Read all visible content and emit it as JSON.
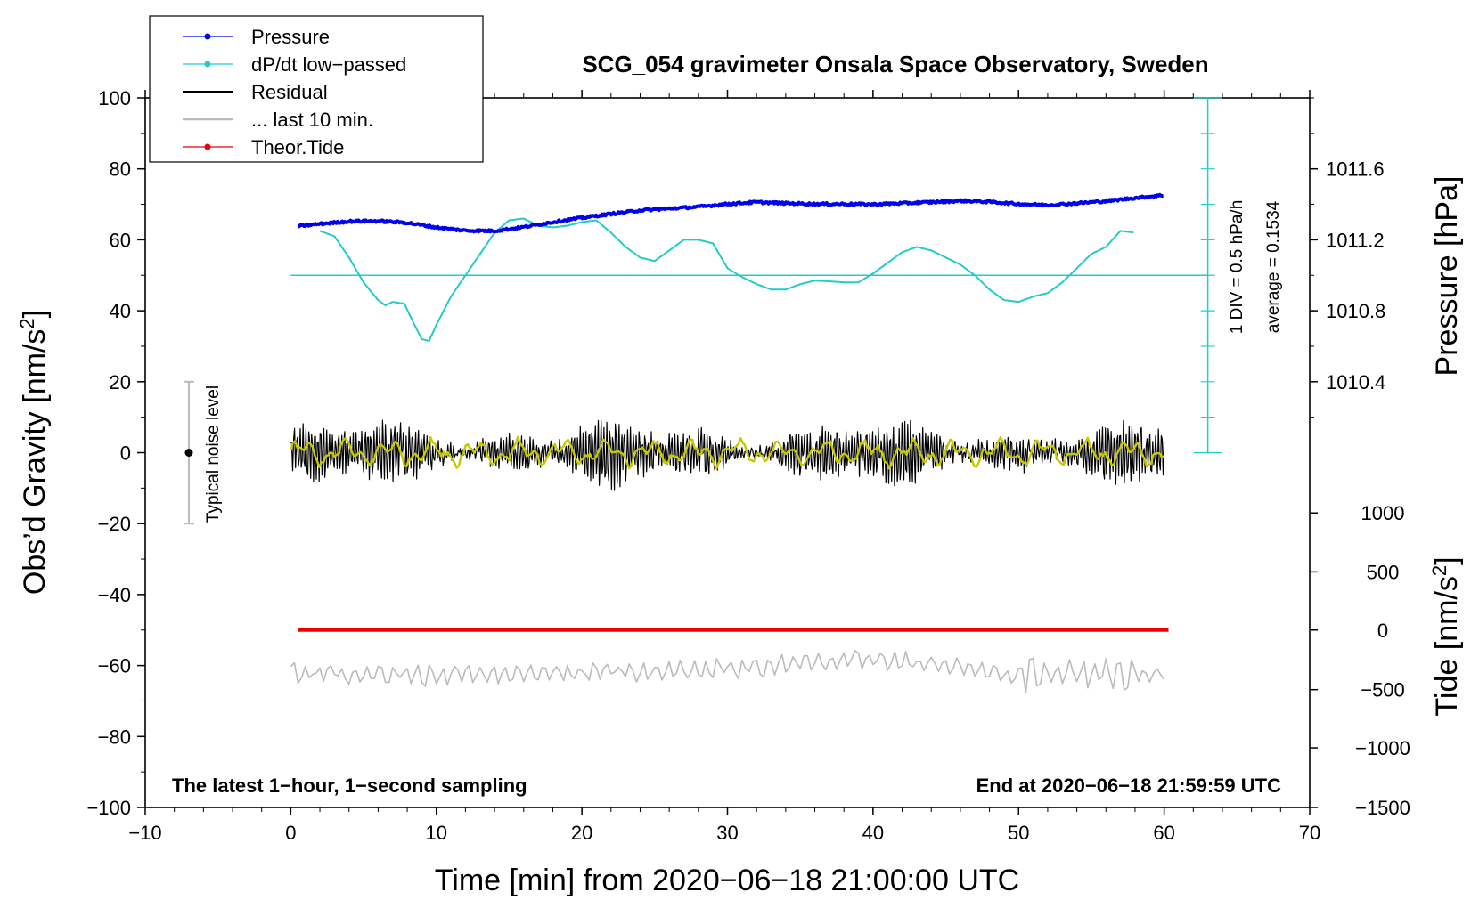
{
  "chart_data": {
    "type": "line",
    "title": "SCG_054 gravimeter Onsala Space Observatory, Sweden",
    "xlabel": "Time [min] from 2020−06−18 21:00:00 UTC",
    "ylabel_left": "Obs’d Gravity [nm/s",
    "ylabel_left_sup": "2",
    "ylabel_left_close": "]",
    "ylabel_pressure": "Pressure [hPa]",
    "ylabel_tide": "Tide [nm/s",
    "ylabel_tide_sup": "2",
    "ylabel_tide_close": "]",
    "xlim": [
      -10,
      70
    ],
    "ylim_left": [
      -100,
      100
    ],
    "x_ticks": [
      -10,
      0,
      10,
      20,
      30,
      40,
      50,
      60,
      70
    ],
    "x_tick_labels": [
      "−10",
      "0",
      "10",
      "20",
      "30",
      "40",
      "50",
      "60",
      "70"
    ],
    "y_ticks_left": [
      100,
      80,
      60,
      40,
      20,
      0,
      -20,
      -40,
      -60,
      -80,
      -100
    ],
    "y_tick_labels_left": [
      "100",
      "80",
      "60",
      "40",
      "20",
      "0",
      "−20",
      "−40",
      "−60",
      "−80",
      "−100"
    ],
    "pressure_axis": {
      "ticks_hpa": [
        1011.6,
        1011.2,
        1010.8,
        1010.4
      ],
      "tick_labels": [
        "1011.6",
        "1011.2",
        "1010.8",
        "1010.4"
      ],
      "tick_left_units": [
        80,
        60,
        40,
        20
      ]
    },
    "tide_axis": {
      "ticks": [
        1000,
        500,
        0,
        -500,
        -1000,
        -1500
      ],
      "tick_labels": [
        "1000",
        "500",
        "0",
        "−500",
        "−1000",
        "−1500"
      ],
      "tick_left_units": [
        -17,
        -33.6,
        -50,
        -66.8,
        -83.2,
        -100
      ]
    },
    "legend": [
      {
        "label": "Pressure",
        "color": "#0000ee",
        "marker": true
      },
      {
        "label": "dP/dt low−passed",
        "color": "#22cccc",
        "marker": true
      },
      {
        "label": "Residual",
        "color": "#000000",
        "marker": false
      },
      {
        "label": "... last 10 min.",
        "color": "#bbbbbb",
        "marker": false
      },
      {
        "label": "Theor.Tide",
        "color": "#ee0000",
        "marker": true
      }
    ],
    "series": [
      {
        "name": "Pressure",
        "color": "#0000ee",
        "x": [
          0.5,
          2,
          4,
          6,
          8,
          10,
          12,
          14,
          16,
          18,
          20,
          22,
          24,
          26,
          28,
          30,
          32,
          34,
          36,
          38,
          40,
          42,
          44,
          46,
          48,
          50,
          52,
          54,
          56,
          58,
          60
        ],
        "y": [
          63.8,
          64.5,
          65.2,
          65.3,
          64.8,
          63.5,
          62.6,
          62.5,
          63.6,
          65.0,
          66.2,
          67.3,
          68.3,
          68.8,
          69.3,
          70.1,
          70.6,
          70.3,
          70.1,
          70.1,
          70.0,
          70.3,
          70.6,
          71.0,
          70.7,
          70.1,
          69.8,
          70.3,
          70.9,
          71.8,
          72.6
        ]
      },
      {
        "name": "dP/dt low-passed",
        "color": "#22cccc",
        "x": [
          2,
          3,
          4,
          5,
          6,
          6.5,
          7,
          7.8,
          8.5,
          9.0,
          9.5,
          10,
          11,
          12,
          13,
          14,
          15,
          16,
          17,
          18,
          19,
          20,
          21,
          22,
          23,
          24,
          25,
          26,
          27,
          28,
          29,
          30,
          31,
          32,
          33,
          34,
          35,
          36,
          37,
          38,
          39,
          40,
          41,
          42,
          43,
          44,
          45,
          46,
          47,
          48,
          49,
          50,
          51,
          52,
          53,
          54,
          55,
          56,
          57,
          58
        ],
        "y": [
          62.5,
          61,
          55,
          48,
          43,
          41.5,
          42.5,
          42,
          36,
          32,
          31.5,
          36,
          44,
          50,
          56,
          62,
          65.5,
          66,
          64,
          63.5,
          64,
          65,
          65.5,
          62,
          58,
          55,
          54,
          57,
          60,
          60,
          59,
          52,
          49.5,
          47.5,
          46,
          46,
          47.5,
          48.5,
          48.3,
          48,
          48,
          50.5,
          53.5,
          56.5,
          58,
          57,
          55,
          53,
          50,
          46,
          43,
          42.5,
          44,
          45,
          48,
          52,
          56,
          58,
          62.5,
          62
        ]
      },
      {
        "name": "Residual",
        "color": "#000000",
        "x": [
          0,
          10,
          20,
          30,
          40,
          50,
          60
        ],
        "y": [
          0,
          0,
          0,
          0,
          0,
          0,
          0
        ]
      },
      {
        "name": "... last 10 min.",
        "color": "#bbbbbb",
        "x": [
          0,
          10,
          20,
          30,
          40,
          50,
          60
        ],
        "y": [
          -62,
          -63,
          -62,
          -61,
          -58,
          -63,
          -62
        ]
      },
      {
        "name": "Theor.Tide",
        "color": "#ee0000",
        "x": [
          0.5,
          60.3
        ],
        "y": [
          -50,
          -50
        ]
      }
    ],
    "dpdt_baseline": 50,
    "dpdt_scale_bar": {
      "x": 63,
      "y_top": 100,
      "y_bottom": 0
    },
    "noise_bar": {
      "x": -7,
      "y_center": 0,
      "y_low": -20,
      "y_high": 20,
      "label": "Typical noise level"
    },
    "annotations": {
      "div_label": "1 DIV = 0.5 hPa/h",
      "average_label": "average = 0.1534",
      "bottom_left": "The latest 1−hour, 1−second sampling",
      "bottom_right": "End at 2020−06−18 21:59:59 UTC"
    }
  }
}
